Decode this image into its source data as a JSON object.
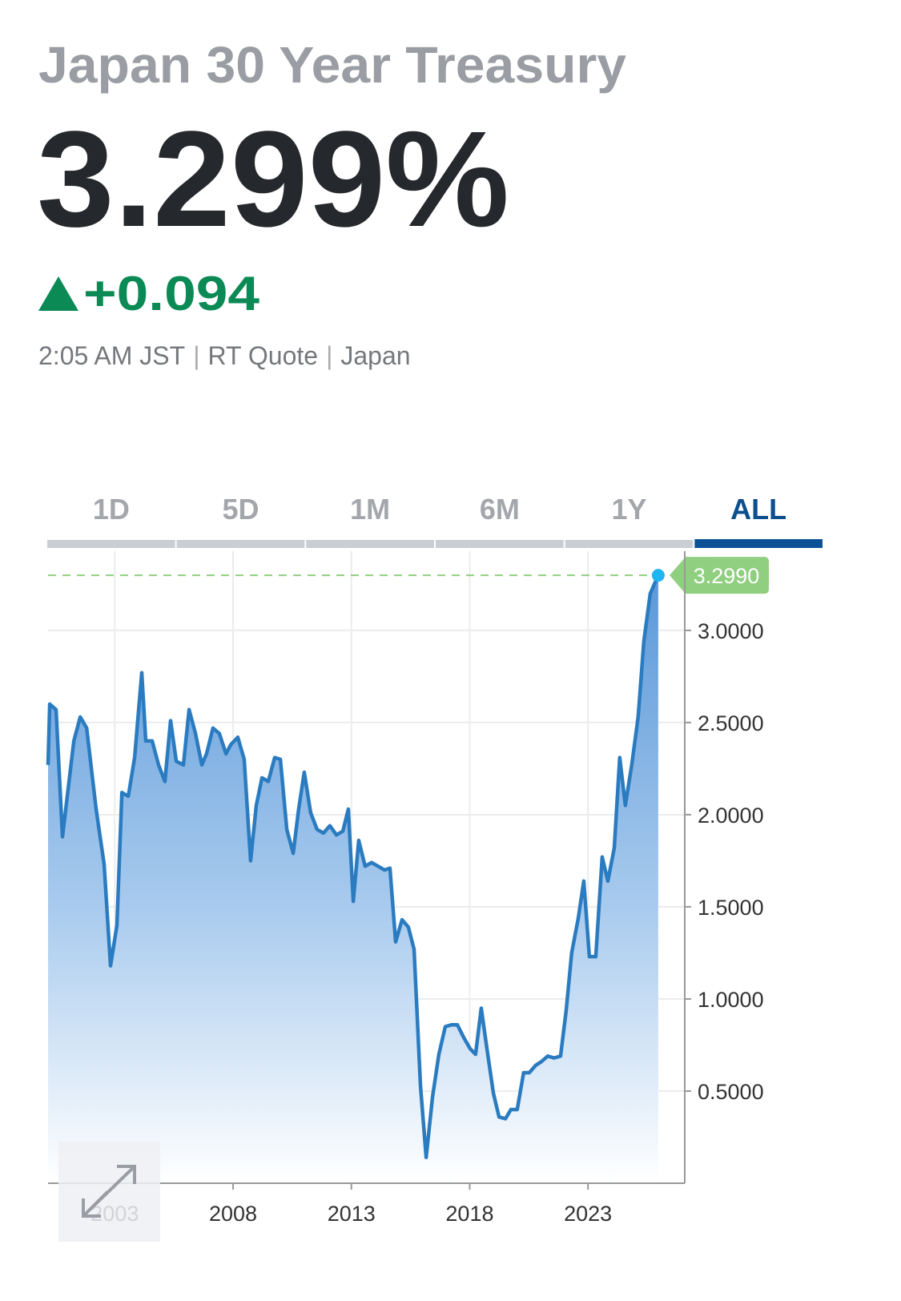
{
  "header": {
    "title": "Japan 30 Year Treasury",
    "price": "3.299%",
    "change": "+0.094",
    "meta": [
      "2:05 AM JST",
      "RT Quote",
      "Japan"
    ]
  },
  "tabs": {
    "items": [
      "1D",
      "5D",
      "1M",
      "6M",
      "1Y",
      "ALL"
    ],
    "active": 5
  },
  "chart_data": {
    "type": "line",
    "color": "#2a7bc0",
    "fill": true,
    "x": [
      2000.18,
      2000.25,
      2000.52,
      2000.79,
      2001.27,
      2001.54,
      2001.81,
      2002.21,
      2002.55,
      2002.82,
      2003.09,
      2003.3,
      2003.57,
      2003.84,
      2004.14,
      2004.31,
      2004.58,
      2004.85,
      2005.12,
      2005.36,
      2005.6,
      2005.9,
      2006.14,
      2006.41,
      2006.68,
      2006.88,
      2007.15,
      2007.42,
      2007.7,
      2007.9,
      2008.2,
      2008.47,
      2008.74,
      2008.98,
      2009.22,
      2009.49,
      2009.76,
      2010.0,
      2010.27,
      2010.54,
      2010.77,
      2011.01,
      2011.28,
      2011.55,
      2011.82,
      2012.09,
      2012.37,
      2012.64,
      2012.87,
      2013.08,
      2013.31,
      2013.58,
      2013.85,
      2014.13,
      2014.4,
      2014.63,
      2014.87,
      2015.14,
      2015.41,
      2015.65,
      2015.92,
      2016.16,
      2016.43,
      2016.7,
      2016.97,
      2017.24,
      2017.48,
      2017.75,
      2018.02,
      2018.25,
      2018.49,
      2018.73,
      2019.0,
      2019.24,
      2019.51,
      2019.74,
      2020.01,
      2020.28,
      2020.52,
      2020.79,
      2021.03,
      2021.3,
      2021.57,
      2021.84,
      2022.08,
      2022.31,
      2022.59,
      2022.82,
      2023.06,
      2023.33,
      2023.6,
      2023.84,
      2024.11,
      2024.34,
      2024.58,
      2024.85,
      2025.12,
      2025.36,
      2025.63,
      2025.97
    ],
    "values": [
      2.27,
      2.6,
      2.57,
      1.88,
      2.4,
      2.53,
      2.47,
      2.03,
      1.73,
      1.18,
      1.4,
      2.12,
      2.1,
      2.31,
      2.77,
      2.4,
      2.4,
      2.27,
      2.18,
      2.51,
      2.29,
      2.27,
      2.57,
      2.44,
      2.27,
      2.33,
      2.47,
      2.44,
      2.33,
      2.38,
      2.42,
      2.3,
      1.75,
      2.05,
      2.2,
      2.18,
      2.31,
      2.3,
      1.92,
      1.79,
      2.03,
      2.23,
      2.01,
      1.92,
      1.9,
      1.94,
      1.89,
      1.91,
      2.03,
      1.53,
      1.86,
      1.72,
      1.74,
      1.72,
      1.7,
      1.71,
      1.31,
      1.43,
      1.39,
      1.27,
      0.53,
      0.14,
      0.47,
      0.7,
      0.85,
      0.86,
      0.86,
      0.79,
      0.73,
      0.7,
      0.95,
      0.73,
      0.49,
      0.36,
      0.35,
      0.4,
      0.4,
      0.6,
      0.6,
      0.64,
      0.66,
      0.69,
      0.68,
      0.69,
      0.94,
      1.25,
      1.44,
      1.64,
      1.23,
      1.23,
      1.77,
      1.64,
      1.82,
      2.31,
      2.05,
      2.27,
      2.53,
      2.94,
      3.2,
      3.299
    ],
    "xlim": [
      2000.18,
      2027.09
    ],
    "xticks": [
      2003,
      2008,
      2013,
      2018,
      2023
    ],
    "ylim": [
      0,
      3.43
    ],
    "yticks": [
      {
        "value": 0.5,
        "label": "0.5000"
      },
      {
        "value": 1,
        "label": "1.0000"
      },
      {
        "value": 1.5,
        "label": "1.5000"
      },
      {
        "value": 2,
        "label": "2.0000"
      },
      {
        "value": 2.5,
        "label": "2.5000"
      },
      {
        "value": 3,
        "label": "3.0000"
      }
    ],
    "last": {
      "value": 3.299,
      "label": "3.2990"
    },
    "grid": true
  }
}
